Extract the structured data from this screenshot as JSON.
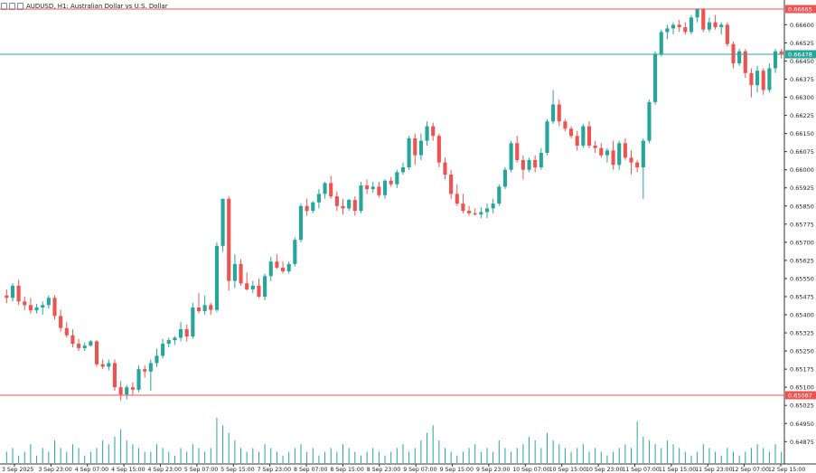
{
  "header": {
    "title": "AUDUSD, H1:  Australian Dollar vs U.S. Dollar",
    "icons": [
      "chart-icon",
      "window-icon",
      "settings-icon"
    ]
  },
  "colors": {
    "bull": "#26a69a",
    "bear": "#ef5350",
    "hline_red": "#ef5350",
    "hline_green": "#26a69a",
    "axis_text": "#222222",
    "volume": "#26a69a"
  },
  "chart_data": {
    "type": "candlestick",
    "symbol": "AUDUSD",
    "timeframe": "H1",
    "ylim": [
      0.6482,
      0.6668
    ],
    "y_ticks": [
      "0.66600",
      "0.66525",
      "0.66450",
      "0.66375",
      "0.66300",
      "0.66225",
      "0.66150",
      "0.66075",
      "0.66000",
      "0.65925",
      "0.65850",
      "0.65775",
      "0.65700",
      "0.65625",
      "0.65550",
      "0.65475",
      "0.65400",
      "0.65325",
      "0.65250",
      "0.65175",
      "0.65100",
      "0.65025",
      "0.64950",
      "0.64875"
    ],
    "x_labels": [
      "3 Sep 2025",
      "3 Sep 23:00",
      "4 Sep 07:00",
      "4 Sep 15:00",
      "4 Sep 23:00",
      "5 Sep 07:00",
      "5 Sep 15:00",
      "7 Sep 23:00",
      "8 Sep 07:00",
      "8 Sep 15:00",
      "8 Sep 23:00",
      "9 Sep 07:00",
      "9 Sep 15:00",
      "9 Sep 23:00",
      "10 Sep 07:00",
      "10 Sep 15:00",
      "10 Sep 23:00",
      "11 Sep 07:00",
      "11 Sep 15:00",
      "11 Sep 23:00",
      "12 Sep 07:00",
      "12 Sep 15:00"
    ],
    "price_labels": [
      {
        "value": 0.66665,
        "text": "0.66665",
        "color": "red"
      },
      {
        "value": 0.66478,
        "text": "0.66478",
        "color": "green"
      },
      {
        "value": 0.65067,
        "text": "0.65067",
        "color": "red"
      }
    ],
    "candles": [
      [
        0.6548,
        0.65505,
        0.65448,
        0.6547
      ],
      [
        0.6547,
        0.6553,
        0.65455,
        0.6552
      ],
      [
        0.6552,
        0.65545,
        0.6544,
        0.65455
      ],
      [
        0.65455,
        0.65475,
        0.6542,
        0.6544
      ],
      [
        0.6544,
        0.6547,
        0.65405,
        0.65418
      ],
      [
        0.65418,
        0.65445,
        0.65405,
        0.6543
      ],
      [
        0.6543,
        0.65455,
        0.654,
        0.6544
      ],
      [
        0.6544,
        0.6548,
        0.65425,
        0.6547
      ],
      [
        0.6547,
        0.6548,
        0.6538,
        0.65395
      ],
      [
        0.65395,
        0.6542,
        0.6533,
        0.65345
      ],
      [
        0.65345,
        0.6537,
        0.65305,
        0.65315
      ],
      [
        0.65315,
        0.6534,
        0.65265,
        0.6528
      ],
      [
        0.6528,
        0.653,
        0.6525,
        0.65262
      ],
      [
        0.65262,
        0.65285,
        0.6525,
        0.65272
      ],
      [
        0.65272,
        0.65295,
        0.6527,
        0.6529
      ],
      [
        0.6529,
        0.65295,
        0.65185,
        0.65195
      ],
      [
        0.65195,
        0.65215,
        0.65175,
        0.65185
      ],
      [
        0.65185,
        0.65215,
        0.6517,
        0.652
      ],
      [
        0.652,
        0.65215,
        0.65085,
        0.651
      ],
      [
        0.651,
        0.65125,
        0.65045,
        0.6507
      ],
      [
        0.6507,
        0.6511,
        0.6505,
        0.651
      ],
      [
        0.651,
        0.6512,
        0.65065,
        0.6509
      ],
      [
        0.6509,
        0.6519,
        0.6508,
        0.65175
      ],
      [
        0.65175,
        0.6519,
        0.6514,
        0.65165
      ],
      [
        0.65165,
        0.65215,
        0.65085,
        0.652
      ],
      [
        0.652,
        0.6526,
        0.65185,
        0.6523
      ],
      [
        0.6523,
        0.653,
        0.6522,
        0.6528
      ],
      [
        0.6528,
        0.65305,
        0.65265,
        0.65295
      ],
      [
        0.65295,
        0.6531,
        0.65275,
        0.65305
      ],
      [
        0.65305,
        0.6537,
        0.6529,
        0.6534
      ],
      [
        0.6534,
        0.6536,
        0.6529,
        0.6531
      ],
      [
        0.6531,
        0.6545,
        0.653,
        0.6543
      ],
      [
        0.6543,
        0.6549,
        0.65405,
        0.65415
      ],
      [
        0.65415,
        0.6548,
        0.654,
        0.6544
      ],
      [
        0.6544,
        0.6545,
        0.654,
        0.6542
      ],
      [
        0.6542,
        0.657,
        0.6541,
        0.65685
      ],
      [
        0.65685,
        0.6588,
        0.6566,
        0.6588
      ],
      [
        0.6588,
        0.6589,
        0.655,
        0.6554
      ],
      [
        0.6554,
        0.6565,
        0.6551,
        0.6561
      ],
      [
        0.6561,
        0.6563,
        0.6552,
        0.6553
      ],
      [
        0.6553,
        0.65575,
        0.655,
        0.65505
      ],
      [
        0.65505,
        0.6554,
        0.6549,
        0.6552
      ],
      [
        0.6552,
        0.6555,
        0.6547,
        0.65475
      ],
      [
        0.65475,
        0.6557,
        0.6546,
        0.6556
      ],
      [
        0.6556,
        0.6564,
        0.6554,
        0.6562
      ],
      [
        0.6562,
        0.6565,
        0.6559,
        0.65595
      ],
      [
        0.65595,
        0.6562,
        0.6557,
        0.6558
      ],
      [
        0.6558,
        0.6562,
        0.6557,
        0.6561
      ],
      [
        0.6561,
        0.6572,
        0.656,
        0.6571
      ],
      [
        0.6571,
        0.6586,
        0.657,
        0.6585
      ],
      [
        0.6585,
        0.6588,
        0.6581,
        0.6583
      ],
      [
        0.6583,
        0.6587,
        0.6582,
        0.65865
      ],
      [
        0.65865,
        0.6592,
        0.6584,
        0.659
      ],
      [
        0.659,
        0.6595,
        0.6588,
        0.65945
      ],
      [
        0.65945,
        0.65975,
        0.6588,
        0.6589
      ],
      [
        0.6589,
        0.6591,
        0.6583,
        0.6585
      ],
      [
        0.6585,
        0.6588,
        0.65815,
        0.6584
      ],
      [
        0.6584,
        0.6588,
        0.6583,
        0.65875
      ],
      [
        0.65875,
        0.6589,
        0.6581,
        0.6583
      ],
      [
        0.6583,
        0.6595,
        0.6582,
        0.65935
      ],
      [
        0.65935,
        0.6596,
        0.659,
        0.6592
      ],
      [
        0.6592,
        0.6595,
        0.65905,
        0.6593
      ],
      [
        0.6593,
        0.6595,
        0.65885,
        0.65895
      ],
      [
        0.65895,
        0.6596,
        0.6588,
        0.65955
      ],
      [
        0.65955,
        0.6597,
        0.6593,
        0.6594
      ],
      [
        0.6594,
        0.66,
        0.65925,
        0.6599
      ],
      [
        0.6599,
        0.6603,
        0.6598,
        0.6601
      ],
      [
        0.6601,
        0.6614,
        0.66,
        0.6613
      ],
      [
        0.6613,
        0.6615,
        0.6602,
        0.6606
      ],
      [
        0.6606,
        0.6615,
        0.6604,
        0.6612
      ],
      [
        0.6612,
        0.662,
        0.661,
        0.6618
      ],
      [
        0.6618,
        0.66195,
        0.6612,
        0.6614
      ],
      [
        0.6614,
        0.6615,
        0.6601,
        0.6603
      ],
      [
        0.6603,
        0.6605,
        0.6596,
        0.6598
      ],
      [
        0.6598,
        0.66,
        0.6588,
        0.659
      ],
      [
        0.659,
        0.6594,
        0.6585,
        0.6586
      ],
      [
        0.6586,
        0.659,
        0.6582,
        0.6583
      ],
      [
        0.6583,
        0.6585,
        0.6581,
        0.6582
      ],
      [
        0.6582,
        0.6584,
        0.6581,
        0.65815
      ],
      [
        0.65815,
        0.65845,
        0.658,
        0.65825
      ],
      [
        0.65825,
        0.6586,
        0.658,
        0.6584
      ],
      [
        0.6584,
        0.6588,
        0.6582,
        0.6586
      ],
      [
        0.6586,
        0.6594,
        0.6585,
        0.6593
      ],
      [
        0.6593,
        0.6601,
        0.6592,
        0.66
      ],
      [
        0.66,
        0.6612,
        0.6599,
        0.6611
      ],
      [
        0.6611,
        0.6614,
        0.6603,
        0.6604
      ],
      [
        0.6604,
        0.6606,
        0.6596,
        0.66
      ],
      [
        0.66,
        0.6605,
        0.6599,
        0.6604
      ],
      [
        0.6604,
        0.6606,
        0.6599,
        0.6601
      ],
      [
        0.6601,
        0.6609,
        0.66,
        0.6607
      ],
      [
        0.6607,
        0.6621,
        0.6606,
        0.662
      ],
      [
        0.662,
        0.6633,
        0.6619,
        0.6627
      ],
      [
        0.6627,
        0.6629,
        0.6618,
        0.662
      ],
      [
        0.662,
        0.6621,
        0.6616,
        0.6617
      ],
      [
        0.6617,
        0.6618,
        0.6613,
        0.6614
      ],
      [
        0.6614,
        0.6616,
        0.6608,
        0.661
      ],
      [
        0.661,
        0.6619,
        0.6609,
        0.6618
      ],
      [
        0.6618,
        0.662,
        0.6609,
        0.661
      ],
      [
        0.661,
        0.6612,
        0.6607,
        0.6609
      ],
      [
        0.6609,
        0.6611,
        0.6605,
        0.6606
      ],
      [
        0.6606,
        0.6609,
        0.6603,
        0.6608
      ],
      [
        0.6608,
        0.6612,
        0.66,
        0.6602
      ],
      [
        0.6602,
        0.6612,
        0.66,
        0.6611
      ],
      [
        0.6611,
        0.6613,
        0.6604,
        0.6605
      ],
      [
        0.6605,
        0.6608,
        0.6598,
        0.6603
      ],
      [
        0.6603,
        0.6604,
        0.6599,
        0.6601
      ],
      [
        0.6601,
        0.6613,
        0.6588,
        0.6612
      ],
      [
        0.6612,
        0.6629,
        0.6611,
        0.6628
      ],
      [
        0.6628,
        0.6649,
        0.6627,
        0.6648
      ],
      [
        0.6648,
        0.6658,
        0.6647,
        0.6657
      ],
      [
        0.6657,
        0.666,
        0.6654,
        0.66585
      ],
      [
        0.66585,
        0.6661,
        0.6656,
        0.666
      ],
      [
        0.666,
        0.6662,
        0.6657,
        0.6659
      ],
      [
        0.6659,
        0.6661,
        0.6656,
        0.6657
      ],
      [
        0.6657,
        0.6664,
        0.6656,
        0.6663
      ],
      [
        0.6663,
        0.66668,
        0.6661,
        0.66665
      ],
      [
        0.66665,
        0.66668,
        0.6657,
        0.6658
      ],
      [
        0.6658,
        0.6663,
        0.6657,
        0.6661
      ],
      [
        0.6661,
        0.6664,
        0.6658,
        0.6659
      ],
      [
        0.6659,
        0.6661,
        0.6656,
        0.666
      ],
      [
        0.666,
        0.6661,
        0.6651,
        0.6652
      ],
      [
        0.6652,
        0.6653,
        0.6642,
        0.6644
      ],
      [
        0.6644,
        0.665,
        0.6643,
        0.6649
      ],
      [
        0.6649,
        0.665,
        0.6638,
        0.664
      ],
      [
        0.664,
        0.6642,
        0.663,
        0.6635
      ],
      [
        0.6635,
        0.6643,
        0.6632,
        0.6641
      ],
      [
        0.6641,
        0.6642,
        0.6631,
        0.6633
      ],
      [
        0.6633,
        0.6644,
        0.6632,
        0.6642
      ],
      [
        0.6642,
        0.665,
        0.664,
        0.6649
      ],
      [
        0.6649,
        0.665,
        0.6646,
        0.6648
      ]
    ],
    "volumes": [
      3,
      4,
      2,
      3,
      5,
      2,
      4,
      3,
      6,
      4,
      3,
      5,
      4,
      2,
      3,
      4,
      6,
      5,
      7,
      9,
      6,
      5,
      4,
      3,
      3,
      5,
      4,
      3,
      2,
      4,
      3,
      5,
      4,
      3,
      4,
      12,
      10,
      8,
      6,
      4,
      3,
      4,
      3,
      5,
      4,
      3,
      2,
      3,
      4,
      5,
      3,
      4,
      2,
      3,
      4,
      3,
      5,
      4,
      3,
      2,
      3,
      4,
      3,
      2,
      3,
      4,
      5,
      3,
      4,
      6,
      8,
      10,
      6,
      4,
      3,
      2,
      3,
      4,
      5,
      3,
      4,
      3,
      6,
      4,
      3,
      4,
      5,
      7,
      6,
      4,
      8,
      6,
      5,
      4,
      3,
      4,
      5,
      3,
      4,
      3,
      2,
      3,
      4,
      5,
      4,
      11,
      7,
      6,
      5,
      4,
      6,
      5,
      4,
      3,
      2,
      3,
      5,
      4,
      3,
      2,
      4,
      3,
      2,
      3,
      4,
      5,
      4,
      3,
      5,
      3
    ]
  }
}
